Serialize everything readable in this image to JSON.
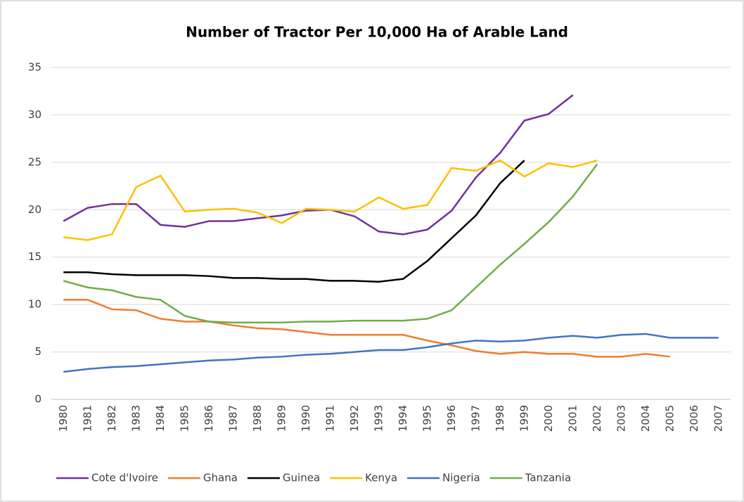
{
  "chart_data": {
    "type": "line",
    "title": "Number of Tractor Per 10,000 Ha of Arable Land",
    "categories": [
      "1980",
      "1981",
      "1982",
      "1983",
      "1984",
      "1985",
      "1986",
      "1987",
      "1988",
      "1989",
      "1990",
      "1991",
      "1992",
      "1993",
      "1994",
      "1995",
      "1996",
      "1997",
      "1998",
      "1999",
      "2000",
      "2001",
      "2002",
      "2003",
      "2004",
      "2005",
      "2006",
      "2007"
    ],
    "ylim": [
      0,
      35
    ],
    "yticks": [
      0,
      5,
      10,
      15,
      20,
      25,
      30,
      35
    ],
    "grid": true,
    "legend": "bottom",
    "series": [
      {
        "name": "Cote d'Ivoire",
        "color": "#7030a0",
        "values": [
          18.8,
          20.2,
          20.6,
          20.6,
          18.4,
          18.2,
          18.8,
          18.8,
          19.1,
          19.4,
          19.9,
          20.0,
          19.3,
          17.7,
          17.4,
          17.9,
          19.9,
          23.4,
          26.0,
          29.4,
          30.1,
          32.1,
          null,
          null,
          null,
          null,
          null,
          null
        ]
      },
      {
        "name": "Ghana",
        "color": "#ed7d31",
        "values": [
          10.5,
          10.5,
          9.5,
          9.4,
          8.5,
          8.2,
          8.2,
          7.8,
          7.5,
          7.4,
          7.1,
          6.8,
          6.8,
          6.8,
          6.8,
          6.2,
          5.7,
          5.1,
          4.8,
          5.0,
          4.8,
          4.8,
          4.5,
          4.5,
          4.8,
          4.5,
          null,
          null
        ]
      },
      {
        "name": "Guinea",
        "color": "#000000",
        "values": [
          13.4,
          13.4,
          13.2,
          13.1,
          13.1,
          13.1,
          13.0,
          12.8,
          12.8,
          12.7,
          12.7,
          12.5,
          12.5,
          12.4,
          12.7,
          14.6,
          17.0,
          19.4,
          22.8,
          25.2,
          null,
          null,
          null,
          null,
          null,
          null,
          null,
          null
        ]
      },
      {
        "name": "Kenya",
        "color": "#ffc000",
        "values": [
          17.1,
          16.8,
          17.4,
          22.4,
          23.6,
          19.8,
          20.0,
          20.1,
          19.7,
          18.6,
          20.1,
          20.0,
          19.8,
          21.3,
          20.1,
          20.5,
          24.4,
          24.1,
          25.2,
          23.5,
          24.9,
          24.5,
          25.2,
          null,
          null,
          null,
          null,
          null
        ]
      },
      {
        "name": "Nigeria",
        "color": "#4472c4",
        "values": [
          2.9,
          3.2,
          3.4,
          3.5,
          3.7,
          3.9,
          4.1,
          4.2,
          4.4,
          4.5,
          4.7,
          4.8,
          5.0,
          5.2,
          5.2,
          5.5,
          5.9,
          6.2,
          6.1,
          6.2,
          6.5,
          6.7,
          6.5,
          6.8,
          6.9,
          6.5,
          6.5,
          6.5
        ]
      },
      {
        "name": "Tanzania",
        "color": "#70ad47",
        "values": [
          12.5,
          11.8,
          11.5,
          10.8,
          10.5,
          8.8,
          8.2,
          8.1,
          8.1,
          8.1,
          8.2,
          8.2,
          8.3,
          8.3,
          8.3,
          8.5,
          9.4,
          11.8,
          14.2,
          16.4,
          18.7,
          21.4,
          24.8,
          null,
          null,
          null,
          null,
          null
        ]
      }
    ]
  }
}
